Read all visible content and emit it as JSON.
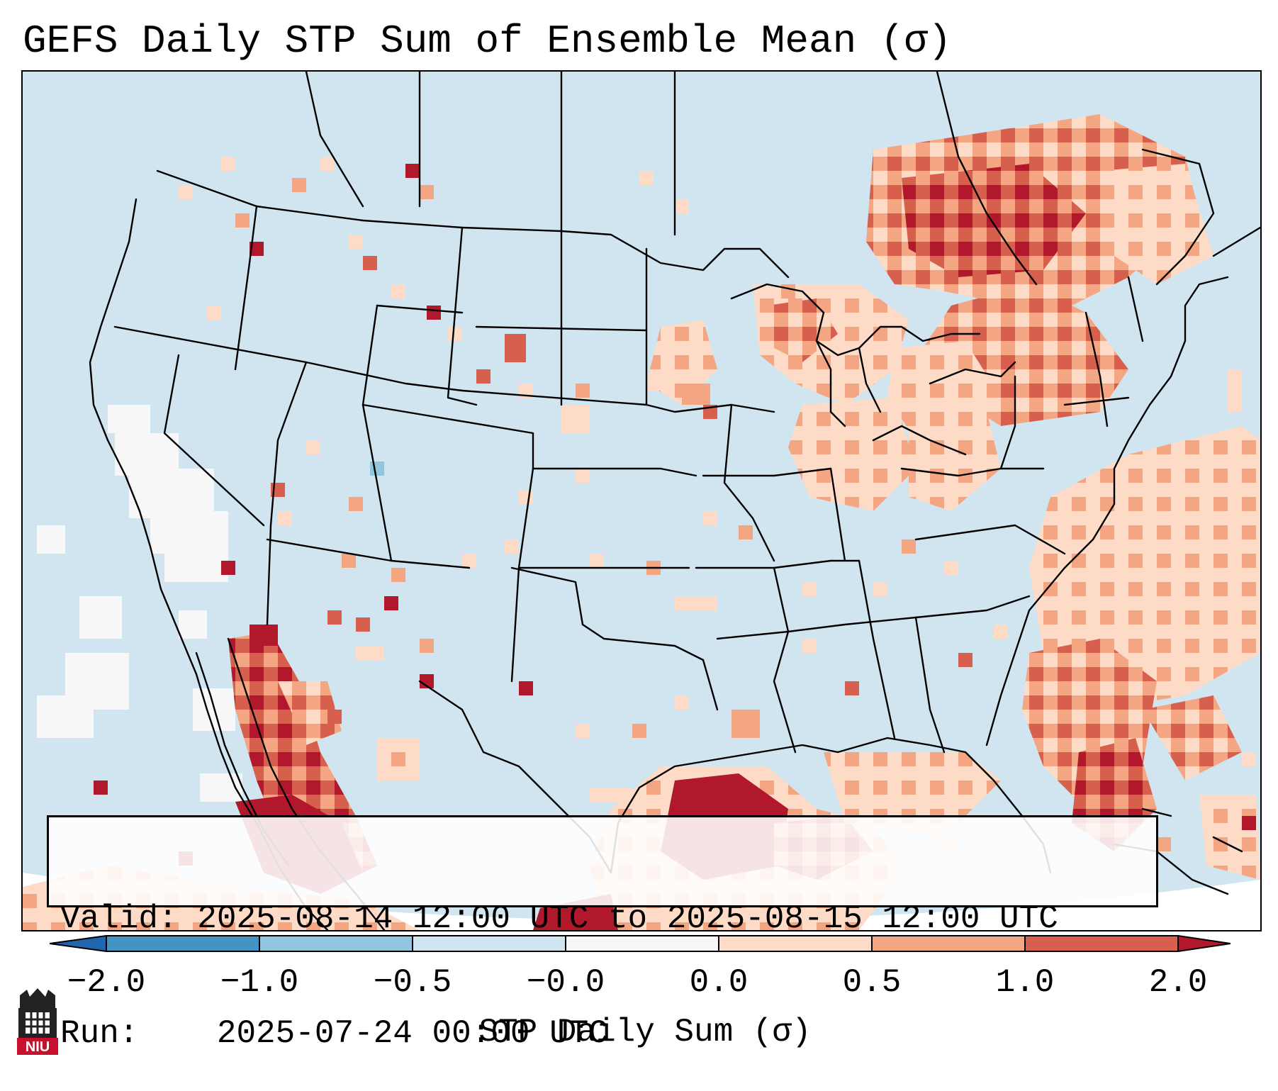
{
  "title": "GEFS Daily STP Sum of Ensemble Mean (σ)",
  "info": {
    "valid_label": "Valid:",
    "valid_value": "2025-08-14 12:00 UTC to 2025-08-15 12:00 UTC",
    "run_label": "Run:",
    "run_value": "2025-07-24 00:00 UTC"
  },
  "colorbar": {
    "label": "STP Daily Sum (σ)",
    "ticks": [
      "−2.0",
      "−1.0",
      "−0.5",
      "−0.0",
      "0.0",
      "0.5",
      "1.0",
      "2.0"
    ],
    "colors": {
      "under": "#2166ac",
      "bin_m2_m1": "#4393c3",
      "bin_m1_m05": "#92c5de",
      "bin_m05_m0": "#d1e5f0",
      "bin_0_0": "#f7f7f7",
      "bin_0_05": "#fddbc7",
      "bin_05_1": "#f4a582",
      "bin_1_2": "#d6604d",
      "over": "#b2182b"
    }
  },
  "logo": {
    "text": "NIU",
    "color": "#c8102e"
  }
}
